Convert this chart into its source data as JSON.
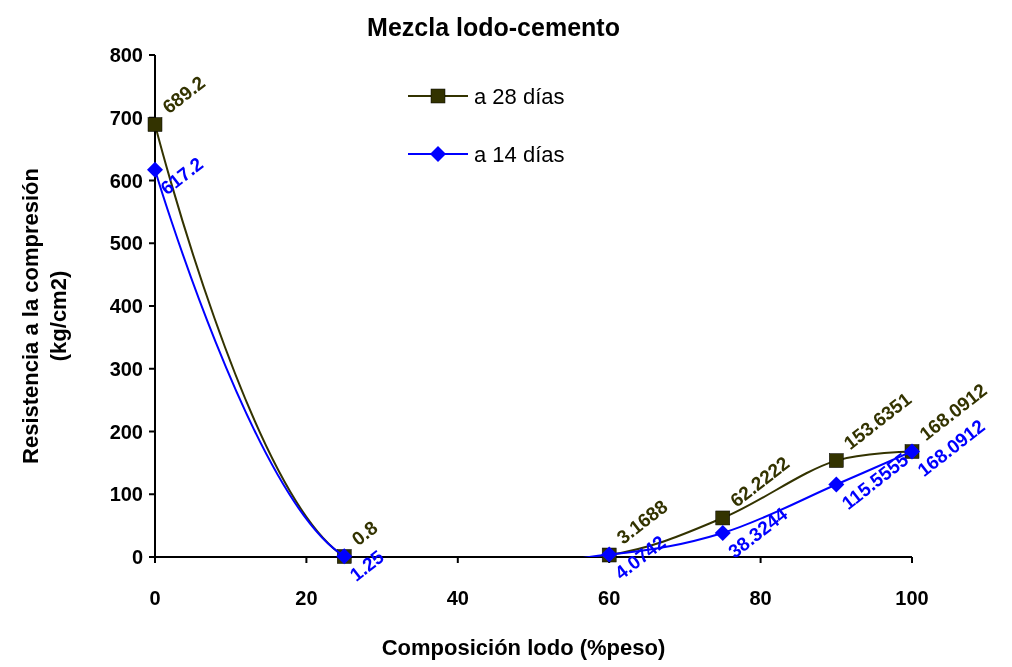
{
  "chart_data": {
    "type": "line",
    "title": "Mezcla lodo-cemento",
    "xlabel": "Composición lodo (%peso)",
    "ylabel": "Resistencia a la compresión\n(kg/cm2)",
    "x": [
      0,
      25,
      60,
      75,
      90,
      100
    ],
    "series": [
      {
        "name": "a 28 días",
        "color": "#333300",
        "marker": "square",
        "values": [
          689.2,
          0.8,
          3.1688,
          62.2222,
          153.6351,
          168.0912
        ]
      },
      {
        "name": "a 14 días",
        "color": "#0000ff",
        "marker": "diamond",
        "values": [
          617.2,
          1.25,
          4.0742,
          38.3244,
          115.5555,
          168.0912
        ]
      }
    ],
    "xlim": [
      0,
      100
    ],
    "xticks": [
      0,
      20,
      40,
      60,
      80,
      100
    ],
    "ylim": [
      0,
      800
    ],
    "yticks": [
      0,
      100,
      200,
      300,
      400,
      500,
      600,
      700,
      800
    ],
    "grid": false,
    "legend": "top",
    "data_labels": true,
    "line_style": "solid"
  }
}
